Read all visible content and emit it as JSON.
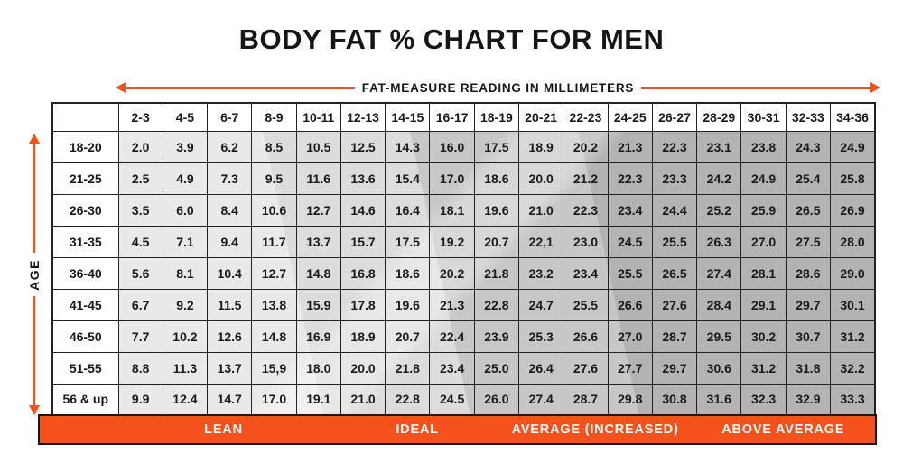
{
  "chart_data": {
    "type": "table",
    "title": "BODY FAT % CHART FOR MEN",
    "x_axis_label": "FAT-MEASURE READING IN MILLIMETERS",
    "y_axis_label": "AGE",
    "col_headers": [
      "2-3",
      "4-5",
      "6-7",
      "8-9",
      "10-11",
      "12-13",
      "14-15",
      "16-17",
      "18-19",
      "20-21",
      "22-23",
      "24-25",
      "26-27",
      "28-29",
      "30-31",
      "32-33",
      "34-36"
    ],
    "rows": [
      {
        "age": "18-20",
        "values": [
          "2.0",
          "3.9",
          "6.2",
          "8.5",
          "10.5",
          "12.5",
          "14.3",
          "16.0",
          "17.5",
          "18.9",
          "20.2",
          "21.3",
          "22.3",
          "23.1",
          "23.8",
          "24.3",
          "24.9"
        ]
      },
      {
        "age": "21-25",
        "values": [
          "2.5",
          "4.9",
          "7.3",
          "9.5",
          "11.6",
          "13.6",
          "15.4",
          "17.0",
          "18.6",
          "20.0",
          "21.2",
          "22.3",
          "23.3",
          "24.2",
          "24.9",
          "25.4",
          "25.8"
        ]
      },
      {
        "age": "26-30",
        "values": [
          "3.5",
          "6.0",
          "8.4",
          "10.6",
          "12.7",
          "14.6",
          "16.4",
          "18.1",
          "19.6",
          "21.0",
          "22.3",
          "23.4",
          "24.4",
          "25.2",
          "25.9",
          "26.5",
          "26.9"
        ]
      },
      {
        "age": "31-35",
        "values": [
          "4.5",
          "7.1",
          "9.4",
          "11.7",
          "13.7",
          "15.7",
          "17.5",
          "19.2",
          "20.7",
          "22,1",
          "23.0",
          "24.5",
          "25.5",
          "26.3",
          "27.0",
          "27.5",
          "28.0"
        ]
      },
      {
        "age": "36-40",
        "values": [
          "5.6",
          "8.1",
          "10.4",
          "12.7",
          "14.8",
          "16.8",
          "18.6",
          "20.2",
          "21.8",
          "23.2",
          "23.4",
          "25.5",
          "26.5",
          "27.4",
          "28.1",
          "28.6",
          "29.0"
        ]
      },
      {
        "age": "41-45",
        "values": [
          "6.7",
          "9.2",
          "11.5",
          "13.8",
          "15.9",
          "17.8",
          "19.6",
          "21.3",
          "22.8",
          "24.7",
          "25.5",
          "26.6",
          "27.6",
          "28.4",
          "29.1",
          "29.7",
          "30.1"
        ]
      },
      {
        "age": "46-50",
        "values": [
          "7.7",
          "10.2",
          "12.6",
          "14.8",
          "16.9",
          "18.9",
          "20.7",
          "22.4",
          "23.9",
          "25.3",
          "26.6",
          "27.0",
          "28.7",
          "29.5",
          "30.2",
          "30.7",
          "31.2"
        ]
      },
      {
        "age": "51-55",
        "values": [
          "8.8",
          "11.3",
          "13.7",
          "15,9",
          "18.0",
          "20.0",
          "21.8",
          "23.4",
          "25.0",
          "26.4",
          "27.6",
          "27.7",
          "29.7",
          "30.6",
          "31.2",
          "31.8",
          "32.2"
        ]
      },
      {
        "age": "56 & up",
        "values": [
          "9.9",
          "12.4",
          "14.7",
          "17.0",
          "19.1",
          "21.0",
          "22.8",
          "24.5",
          "26.0",
          "27.4",
          "28.7",
          "29.8",
          "30.8",
          "31.6",
          "32.3",
          "32.9",
          "33.3"
        ]
      }
    ],
    "zones": [
      "LEAN",
      "IDEAL",
      "AVERAGE (INCREASED)",
      "ABOVE AVERAGE"
    ]
  },
  "colors": {
    "accent": "#F4511C",
    "band_lean": "#E9E9E8",
    "band_ideal": "#DCDCDB",
    "band_avg": "#C8C7C5",
    "band_above": "#B4B3B1",
    "border": "#222222",
    "text": "#161616"
  }
}
